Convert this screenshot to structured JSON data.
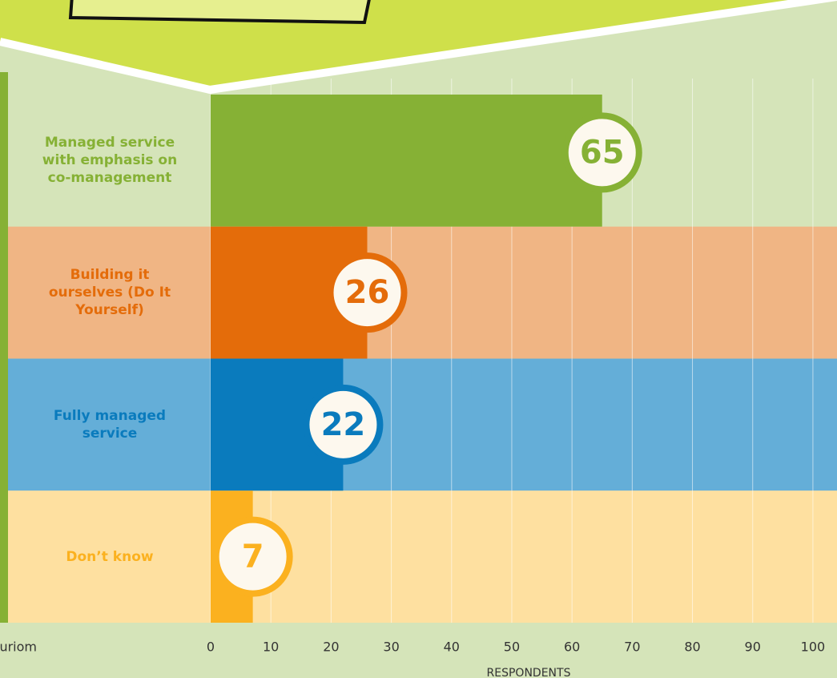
{
  "chart_data": {
    "type": "bar",
    "orientation": "horizontal",
    "categories": [
      "Managed service with emphasis on co-management",
      "Building it ourselves (Do It Yourself)",
      "Fully managed service",
      "Don’t know"
    ],
    "values": [
      65,
      26,
      22,
      7
    ],
    "colors": [
      "#86b135",
      "#e46c0a",
      "#0a7bbd",
      "#fbb11f"
    ],
    "backgrounds": [
      "#d5e4b9",
      "#f0b584",
      "#64aed8",
      "#fee0a0"
    ],
    "xlim": [
      0,
      104
    ],
    "xticks": [
      0,
      10,
      20,
      30,
      40,
      50,
      60,
      70,
      80,
      90,
      100
    ],
    "grid": true,
    "xlabel": "RESPONDENTS",
    "source": "uriom"
  }
}
